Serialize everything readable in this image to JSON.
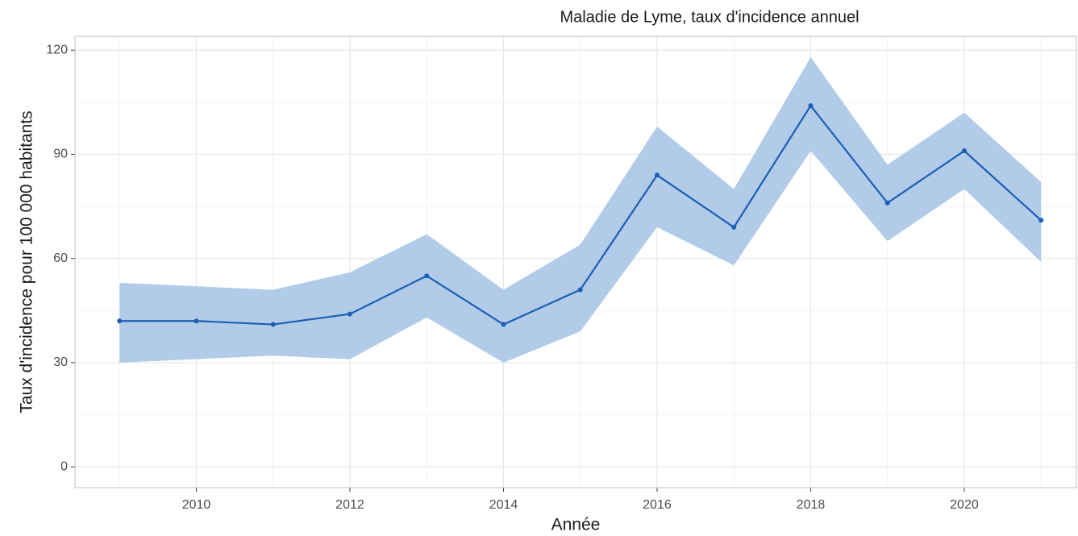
{
  "chart_data": {
    "type": "line",
    "title": "Maladie de Lyme, taux d'incidence annuel",
    "xlabel": "Année",
    "ylabel": "Taux d'incidence pour 100 000 habitants",
    "x": [
      2009,
      2010,
      2011,
      2012,
      2013,
      2014,
      2015,
      2016,
      2017,
      2018,
      2019,
      2020,
      2021
    ],
    "values": [
      42,
      42,
      41,
      44,
      55,
      41,
      51,
      84,
      69,
      104,
      76,
      91,
      71
    ],
    "lower": [
      30,
      31,
      32,
      31,
      43,
      30,
      39,
      69,
      58,
      91,
      65,
      80,
      59
    ],
    "upper": [
      53,
      52,
      51,
      56,
      67,
      51,
      64,
      98,
      80,
      118,
      87,
      102,
      82
    ],
    "color": "#1a5fb4",
    "band_color": "#b1cbe9",
    "xlim": [
      2008.42,
      2021.46
    ],
    "ylim": [
      -6,
      124
    ],
    "xticks": [
      2010,
      2012,
      2014,
      2016,
      2018,
      2020
    ],
    "yticks": [
      0,
      30,
      60,
      90,
      120
    ],
    "xminorticks": [
      2009,
      2011,
      2013,
      2015,
      2017,
      2019,
      2021
    ],
    "yminorticks": [
      15,
      45,
      75,
      105
    ],
    "grid": true
  }
}
